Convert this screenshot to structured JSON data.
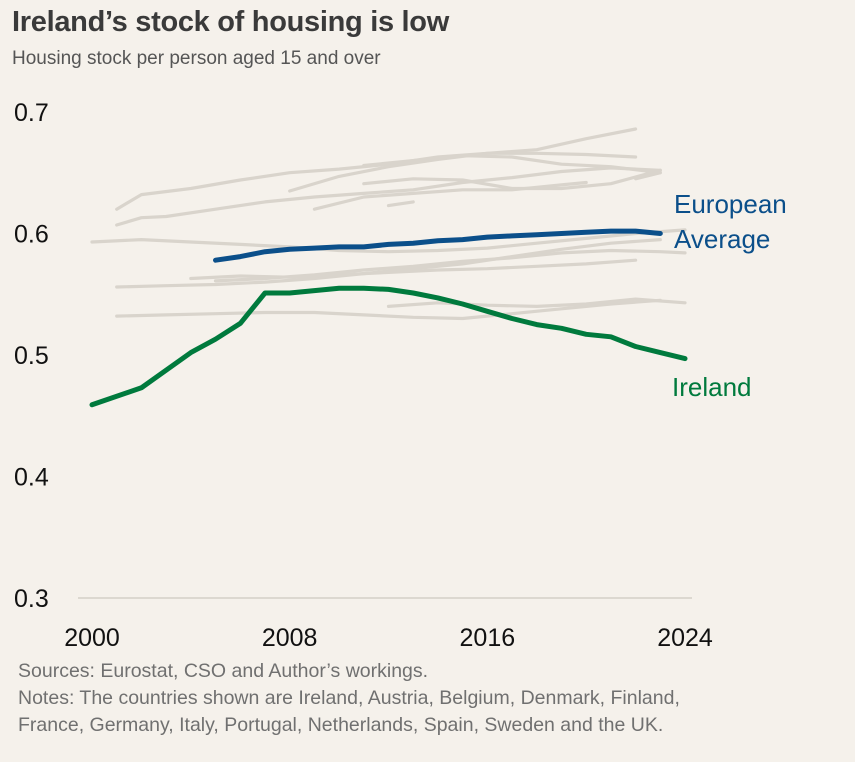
{
  "header": {
    "title": "Ireland’s stock of housing is low",
    "subtitle": "Housing stock per person aged 15 and over"
  },
  "footer": {
    "sources": "Sources: Eurostat, CSO and Author’s workings.",
    "notes_line1": "Notes: The countries shown are Ireland, Austria, Belgium, Denmark, Finland,",
    "notes_line2": "France, Germany, Italy, Portugal, Netherlands, Spain, Sweden and the UK."
  },
  "chart_data": {
    "type": "line",
    "title": "Ireland’s stock of housing is low",
    "subtitle": "Housing stock per person aged 15 and over",
    "xlim": [
      2000,
      2024
    ],
    "ylim": [
      0.3,
      0.7
    ],
    "xticks": [
      2000,
      2008,
      2016,
      2024
    ],
    "yticks": [
      0.3,
      0.4,
      0.5,
      0.6,
      0.7
    ],
    "xtick_labels": [
      "2000",
      "2008",
      "2016",
      "2024"
    ],
    "ytick_labels": [
      "0.3",
      "0.4",
      "0.5",
      "0.6",
      "0.7"
    ],
    "grid": false,
    "colors": {
      "ireland": "#007a3d",
      "european_average": "#0b4f8a",
      "other": "#d9d4cc"
    },
    "series": [
      {
        "name": "Ireland",
        "highlight": true,
        "x": [
          2000,
          2002,
          2004,
          2005,
          2006,
          2007,
          2008,
          2009,
          2010,
          2011,
          2012,
          2013,
          2014,
          2015,
          2016,
          2017,
          2018,
          2019,
          2020,
          2021,
          2022,
          2023,
          2024
        ],
        "y": [
          0.459,
          0.473,
          0.502,
          0.513,
          0.526,
          0.551,
          0.551,
          0.553,
          0.555,
          0.555,
          0.554,
          0.551,
          0.547,
          0.542,
          0.536,
          0.53,
          0.525,
          0.522,
          0.517,
          0.515,
          0.507,
          0.502,
          0.497
        ]
      },
      {
        "name": "European Average",
        "highlight": true,
        "x": [
          2005,
          2006,
          2007,
          2008,
          2009,
          2010,
          2011,
          2012,
          2013,
          2014,
          2015,
          2016,
          2017,
          2018,
          2019,
          2020,
          2021,
          2022,
          2023
        ],
        "y": [
          0.578,
          0.581,
          0.585,
          0.587,
          0.588,
          0.589,
          0.589,
          0.591,
          0.592,
          0.594,
          0.595,
          0.597,
          0.598,
          0.599,
          0.6,
          0.601,
          0.602,
          0.602,
          0.6
        ]
      },
      {
        "x": [
          2001,
          2002,
          2004,
          2006,
          2008,
          2010,
          2012,
          2014,
          2016,
          2018,
          2020,
          2022
        ],
        "y": [
          0.62,
          0.632,
          0.637,
          0.644,
          0.65,
          0.653,
          0.657,
          0.663,
          0.666,
          0.669,
          0.678,
          0.686
        ]
      },
      {
        "x": [
          2001,
          2002,
          2003,
          2005,
          2007,
          2009,
          2011,
          2013,
          2015,
          2017,
          2019,
          2021,
          2023
        ],
        "y": [
          0.607,
          0.613,
          0.614,
          0.62,
          0.626,
          0.63,
          0.633,
          0.636,
          0.642,
          0.646,
          0.651,
          0.654,
          0.652
        ]
      },
      {
        "x": [
          2008,
          2010,
          2012,
          2014,
          2016,
          2018,
          2020,
          2022
        ],
        "y": [
          0.635,
          0.647,
          0.655,
          0.661,
          0.666,
          0.666,
          0.665,
          0.663
        ]
      },
      {
        "x": [
          2011,
          2013,
          2015,
          2017,
          2019,
          2021,
          2023
        ],
        "y": [
          0.656,
          0.66,
          0.664,
          0.663,
          0.657,
          0.655,
          0.65
        ]
      },
      {
        "x": [
          2011,
          2013,
          2015,
          2017,
          2019,
          2021,
          2023
        ],
        "y": [
          0.641,
          0.645,
          0.644,
          0.637,
          0.637,
          0.641,
          0.652
        ]
      },
      {
        "x": [
          2009,
          2011,
          2013,
          2015,
          2017,
          2019,
          2020
        ],
        "y": [
          0.62,
          0.63,
          0.633,
          0.636,
          0.636,
          0.64,
          0.642
        ]
      },
      {
        "x": [
          2012,
          2013
        ],
        "y": [
          0.623,
          0.626
        ]
      },
      {
        "x": [
          2022,
          2023
        ],
        "y": [
          0.645,
          0.65
        ]
      },
      {
        "x": [
          2000,
          2002,
          2004,
          2006,
          2008,
          2010,
          2012,
          2014,
          2016,
          2018,
          2020,
          2022,
          2024
        ],
        "y": [
          0.593,
          0.595,
          0.593,
          0.591,
          0.589,
          0.586,
          0.585,
          0.586,
          0.588,
          0.592,
          0.596,
          0.6,
          0.603
        ]
      },
      {
        "x": [
          2001,
          2003,
          2005,
          2007,
          2009,
          2011,
          2013,
          2015,
          2017,
          2019,
          2021,
          2023
        ],
        "y": [
          0.556,
          0.557,
          0.558,
          0.56,
          0.563,
          0.567,
          0.571,
          0.575,
          0.581,
          0.587,
          0.592,
          0.595
        ]
      },
      {
        "x": [
          2005,
          2007,
          2009,
          2011,
          2013,
          2015,
          2017,
          2019,
          2021,
          2023,
          2024
        ],
        "y": [
          0.561,
          0.563,
          0.566,
          0.57,
          0.573,
          0.577,
          0.58,
          0.584,
          0.586,
          0.585,
          0.584
        ]
      },
      {
        "x": [
          2001,
          2003,
          2005,
          2007,
          2009,
          2011,
          2013,
          2015,
          2017,
          2019,
          2021,
          2023
        ],
        "y": [
          0.532,
          0.533,
          0.534,
          0.535,
          0.535,
          0.533,
          0.531,
          0.53,
          0.534,
          0.538,
          0.542,
          0.545
        ]
      },
      {
        "x": [
          2012,
          2014,
          2016,
          2018,
          2020,
          2022,
          2024
        ],
        "y": [
          0.54,
          0.543,
          0.541,
          0.54,
          0.542,
          0.546,
          0.543
        ]
      },
      {
        "x": [
          2004,
          2006,
          2008,
          2010,
          2012,
          2014,
          2016,
          2018,
          2020,
          2022
        ],
        "y": [
          0.563,
          0.565,
          0.564,
          0.566,
          0.568,
          0.57,
          0.571,
          0.573,
          0.575,
          0.578
        ]
      }
    ],
    "annotations": [
      {
        "text": "European",
        "series": "European Average"
      },
      {
        "text": "Average",
        "series": "European Average"
      },
      {
        "text": "Ireland",
        "series": "Ireland"
      }
    ]
  }
}
